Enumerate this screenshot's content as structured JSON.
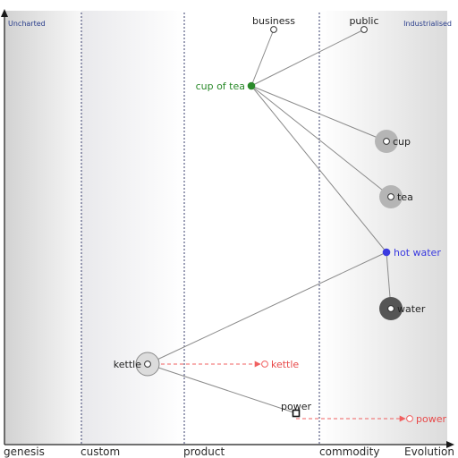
{
  "map": {
    "corner_left": "Uncharted",
    "corner_right": "Industrialised",
    "evolution_label": "Evolution",
    "stages": [
      "genesis",
      "custom",
      "product",
      "commodity"
    ]
  },
  "components": [
    {
      "id": "business",
      "label": "business",
      "color": "#222222"
    },
    {
      "id": "public",
      "label": "public",
      "color": "#222222"
    },
    {
      "id": "cup-of-tea",
      "label": "cup of tea",
      "color": "#2a8a2a"
    },
    {
      "id": "cup",
      "label": "cup",
      "color": "#222222"
    },
    {
      "id": "tea",
      "label": "tea",
      "color": "#222222"
    },
    {
      "id": "hot-water",
      "label": "hot water",
      "color": "#3a3ae0"
    },
    {
      "id": "water",
      "label": "water",
      "color": "#222222"
    },
    {
      "id": "kettle",
      "label": "kettle",
      "color": "#222222"
    },
    {
      "id": "power",
      "label": "power",
      "color": "#222222"
    },
    {
      "id": "kettle-evolved",
      "label": "kettle",
      "color": "#e84a4a"
    },
    {
      "id": "power-evolved",
      "label": "power",
      "color": "#e84a4a"
    }
  ],
  "links": [
    [
      "business",
      "cup-of-tea"
    ],
    [
      "public",
      "cup-of-tea"
    ],
    [
      "cup-of-tea",
      "cup"
    ],
    [
      "cup-of-tea",
      "tea"
    ],
    [
      "cup-of-tea",
      "hot-water"
    ],
    [
      "hot-water",
      "water"
    ],
    [
      "hot-water",
      "kettle"
    ],
    [
      "kettle",
      "power"
    ]
  ],
  "evolutions": [
    [
      "kettle",
      "kettle-evolved"
    ],
    [
      "power",
      "power-evolved"
    ]
  ],
  "colors": {
    "axis": "#1a1a1a",
    "stage_line": "#3a3f6e",
    "link": "#8a8a8a",
    "evolve": "#f06060",
    "inertia_light": "#b5b5b5",
    "inertia_dark": "#555555",
    "kettle_halo": "#dcdcdc"
  }
}
